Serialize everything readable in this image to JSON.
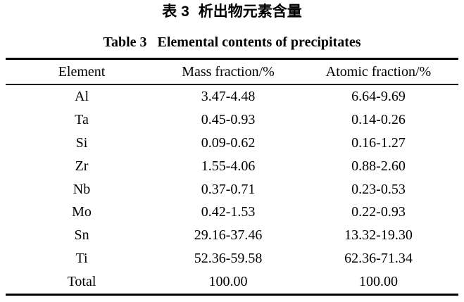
{
  "page": {
    "background_color": "#ffffff",
    "text_color": "#000000"
  },
  "caption_zh": {
    "label": "表 3",
    "title": "析出物元素含量"
  },
  "caption_en": {
    "label": "Table 3",
    "title": "Elemental contents of precipitates"
  },
  "table": {
    "columns": [
      "Element",
      "Mass fraction/%",
      "Atomic fraction/%"
    ],
    "rows": [
      {
        "element": "Al",
        "mass": "3.47-4.48",
        "atomic": "6.64-9.69"
      },
      {
        "element": "Ta",
        "mass": "0.45-0.93",
        "atomic": "0.14-0.26"
      },
      {
        "element": "Si",
        "mass": "0.09-0.62",
        "atomic": "0.16-1.27"
      },
      {
        "element": "Zr",
        "mass": "1.55-4.06",
        "atomic": "0.88-2.60"
      },
      {
        "element": "Nb",
        "mass": "0.37-0.71",
        "atomic": "0.23-0.53"
      },
      {
        "element": "Mo",
        "mass": "0.42-1.53",
        "atomic": "0.22-0.93"
      },
      {
        "element": "Sn",
        "mass": "29.16-37.46",
        "atomic": "13.32-19.30"
      },
      {
        "element": "Ti",
        "mass": "52.36-59.58",
        "atomic": "62.36-71.34"
      },
      {
        "element": "Total",
        "mass": "100.00",
        "atomic": "100.00"
      }
    ]
  }
}
